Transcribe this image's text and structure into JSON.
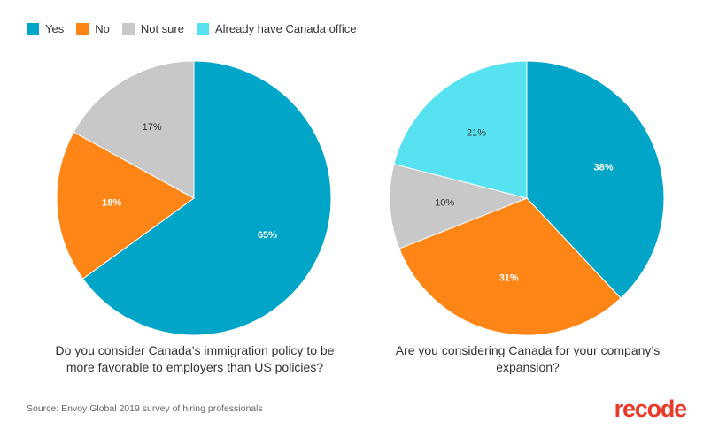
{
  "legend": [
    {
      "label": "Yes",
      "color": "#00a5c8"
    },
    {
      "label": "No",
      "color": "#ff8616"
    },
    {
      "label": "Not sure",
      "color": "#c8c8c8"
    },
    {
      "label": "Already have Canada office",
      "color": "#56e2f0"
    }
  ],
  "chart_data": [
    {
      "type": "pie",
      "title_lines": [
        "Do you consider Canada’s immigration policy to be",
        "more favorable to employers than US policies?"
      ],
      "slices": [
        {
          "label": "Yes",
          "value": 65,
          "display": "65%",
          "color": "#00a5c8",
          "label_color": "#ffffff"
        },
        {
          "label": "No",
          "value": 18,
          "display": "18%",
          "color": "#ff8616",
          "label_color": "#ffffff"
        },
        {
          "label": "Not sure",
          "value": 17,
          "display": "17%",
          "color": "#c8c8c8",
          "label_color": "#333333"
        }
      ]
    },
    {
      "type": "pie",
      "title_lines": [
        "Are you considering Canada for your company’s",
        "expansion?"
      ],
      "slices": [
        {
          "label": "Yes",
          "value": 38,
          "display": "38%",
          "color": "#00a5c8",
          "label_color": "#ffffff"
        },
        {
          "label": "No",
          "value": 31,
          "display": "31%",
          "color": "#ff8616",
          "label_color": "#ffffff"
        },
        {
          "label": "Not sure",
          "value": 10,
          "display": "10%",
          "color": "#c8c8c8",
          "label_color": "#333333"
        },
        {
          "label": "Already have Canada office",
          "value": 21,
          "display": "21%",
          "color": "#56e2f0",
          "label_color": "#333333"
        }
      ]
    }
  ],
  "source": "Source: Envoy Global 2019 survey of hiring professionals",
  "logo": "recode"
}
